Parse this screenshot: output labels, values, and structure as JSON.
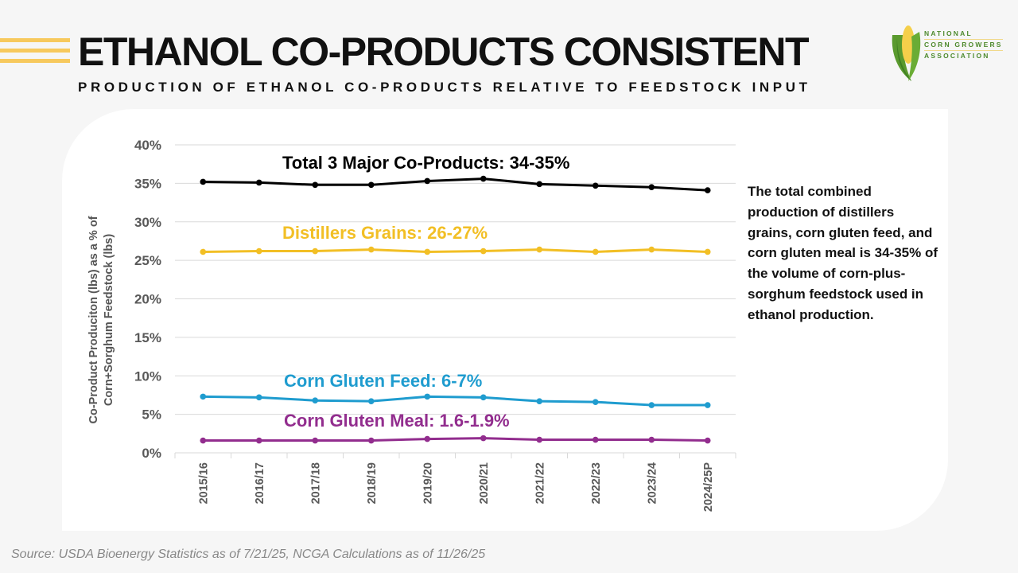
{
  "header": {
    "title": "ETHANOL CO-PRODUCTS CONSISTENT",
    "subtitle": "PRODUCTION OF ETHANOL CO-PRODUCTS RELATIVE TO FEEDSTOCK INPUT"
  },
  "logo": {
    "lines": [
      "NATIONAL",
      "CORN GROWERS",
      "ASSOCIATION"
    ],
    "icon": "corn-cob-icon"
  },
  "note": "The total combined production of distillers grains, corn gluten feed, and corn gluten meal is 34-35% of the volume of corn-plus-sorghum feedstock used in ethanol production.",
  "source": "Source: USDA Bioenergy Statistics as of 7/21/25, NCGA Calculations as of 11/26/25",
  "chart_data": {
    "type": "line",
    "title": "",
    "xlabel": "",
    "ylabel": "Co-Product Produciton (lbs)  as a % of Corn+Sorghum Feedstock (lbs)",
    "ylabel_lines": [
      "Co-Product Produciton (lbs)  as a % of",
      "Corn+Sorghum Feedstock (lbs)"
    ],
    "ylim": [
      0,
      40
    ],
    "yticks": [
      0,
      5,
      10,
      15,
      20,
      25,
      30,
      35,
      40
    ],
    "ytick_labels": [
      "0%",
      "5%",
      "10%",
      "15%",
      "20%",
      "25%",
      "30%",
      "35%",
      "40%"
    ],
    "grid": true,
    "legend": "inline-labels",
    "categories": [
      "2015/16",
      "2016/17",
      "2017/18",
      "2018/19",
      "2019/20",
      "2020/21",
      "2021/22",
      "2022/23",
      "2023/24",
      "2024/25P"
    ],
    "series": [
      {
        "name": "Total 3 Major Co-Products",
        "label": "Total 3 Major Co-Products: 34-35%",
        "color": "#000000",
        "values": [
          35.2,
          35.1,
          34.8,
          34.8,
          35.3,
          35.6,
          34.9,
          34.7,
          34.5,
          34.1
        ]
      },
      {
        "name": "Distillers Grains",
        "label": "Distillers Grains: 26-27%",
        "color": "#f2bf25",
        "values": [
          26.1,
          26.2,
          26.2,
          26.4,
          26.1,
          26.2,
          26.4,
          26.1,
          26.4,
          26.1
        ]
      },
      {
        "name": "Corn Gluten Feed",
        "label": "Corn Gluten Feed: 6-7%",
        "color": "#1f9ccf",
        "values": [
          7.3,
          7.2,
          6.8,
          6.7,
          7.3,
          7.2,
          6.7,
          6.6,
          6.2,
          6.2
        ]
      },
      {
        "name": "Corn Gluten Meal",
        "label": "Corn Gluten Meal: 1.6-1.9%",
        "color": "#922d8e",
        "values": [
          1.6,
          1.6,
          1.6,
          1.6,
          1.8,
          1.9,
          1.7,
          1.7,
          1.7,
          1.6
        ]
      }
    ]
  }
}
